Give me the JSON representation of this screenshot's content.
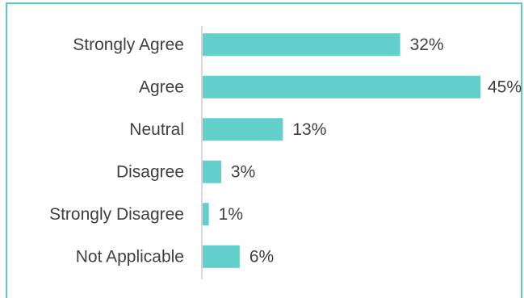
{
  "chart_data": {
    "type": "bar",
    "orientation": "horizontal",
    "categories": [
      "Strongly Agree",
      "Agree",
      "Neutral",
      "Disagree",
      "Strongly Disagree",
      "Not Applicable"
    ],
    "values": [
      32,
      45,
      13,
      3,
      1,
      6
    ],
    "data_labels": [
      "32%",
      "45%",
      "13%",
      "3%",
      "1%",
      "6%"
    ],
    "unit": "%",
    "xlim": [
      0,
      45
    ],
    "grid": false,
    "legend": "none"
  },
  "colors": {
    "bar": "#63cfcb",
    "frame": "#5cc9c4",
    "axis": "#bfbfbf",
    "text": "#404040"
  }
}
